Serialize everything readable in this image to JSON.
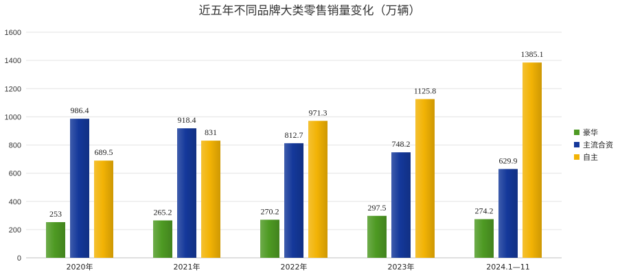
{
  "chart_data": {
    "type": "bar",
    "title": "近五年不同品牌大类零售销量变化（万辆）",
    "categories": [
      "2020年",
      "2021年",
      "2022年",
      "2023年",
      "2024.1—11"
    ],
    "series": [
      {
        "name": "豪华",
        "color": "#4e9a23",
        "values": [
          253,
          265.2,
          270.2,
          297.5,
          274.2
        ],
        "labels": [
          "253",
          "265.2",
          "270.2",
          "297.5",
          "274.2"
        ]
      },
      {
        "name": "主流合资",
        "color": "#14389a",
        "values": [
          986.4,
          918.4,
          812.7,
          748.2,
          629.9
        ],
        "labels": [
          "986.4",
          "918.4",
          "812.7",
          "748.2",
          "629.9"
        ]
      },
      {
        "name": "自主",
        "color": "#f2b305",
        "values": [
          689.5,
          831,
          971.3,
          1125.8,
          1385.1
        ],
        "labels": [
          "689.5",
          "831",
          "971.3",
          "1125.8",
          "1385.1"
        ]
      }
    ],
    "ylim": [
      0,
      1600
    ],
    "yticks": [
      0,
      200,
      400,
      600,
      800,
      1000,
      1200,
      1400,
      1600
    ],
    "grid": true,
    "legend_position": "right"
  }
}
